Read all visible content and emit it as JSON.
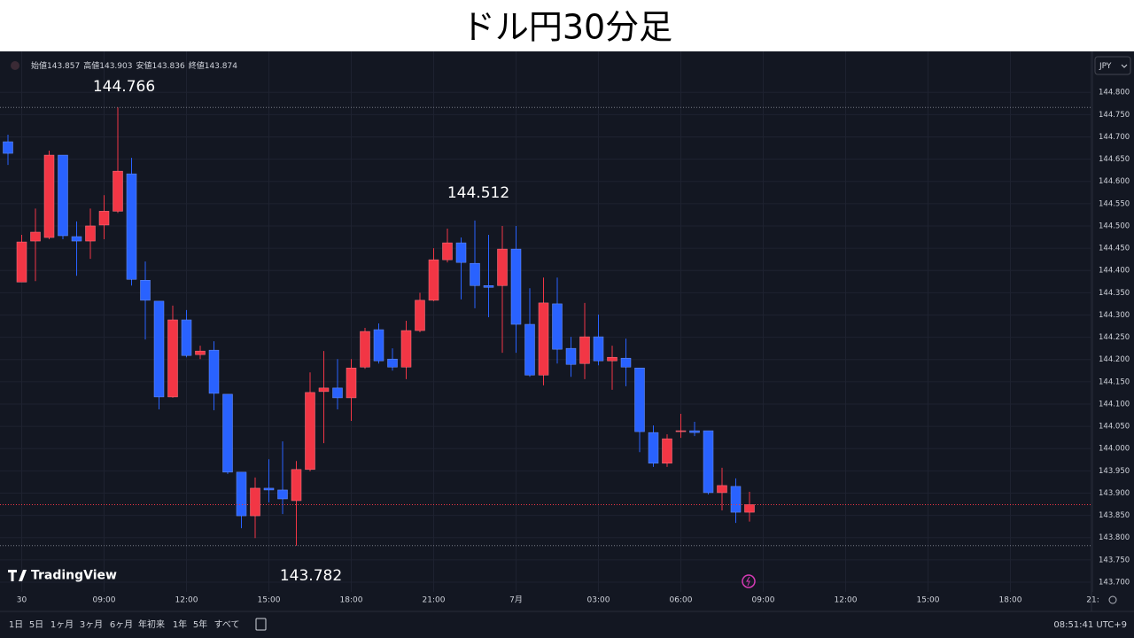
{
  "chart_data": {
    "type": "candlestick",
    "title": "ドル円30分足",
    "currency": "JPY",
    "brand": "TradingView",
    "ohlc_labels": [
      "始値",
      "高値",
      "安値",
      "終値"
    ],
    "up_color": "#f23645",
    "down_color": "#2962ff",
    "grid": true,
    "ylim": [
      143.684,
      144.884
    ],
    "yticks": [
      {
        "value": 144.8,
        "label": "144.800"
      },
      {
        "value": 144.75,
        "label": "144.750"
      },
      {
        "value": 144.7,
        "label": "144.700"
      },
      {
        "value": 144.65,
        "label": "144.650"
      },
      {
        "value": 144.6,
        "label": "144.600"
      },
      {
        "value": 144.55,
        "label": "144.550"
      },
      {
        "value": 144.5,
        "label": "144.500"
      },
      {
        "value": 144.45,
        "label": "144.450"
      },
      {
        "value": 144.4,
        "label": "144.400"
      },
      {
        "value": 144.35,
        "label": "144.350"
      },
      {
        "value": 144.3,
        "label": "144.300"
      },
      {
        "value": 144.25,
        "label": "144.250"
      },
      {
        "value": 144.2,
        "label": "144.200"
      },
      {
        "value": 144.15,
        "label": "144.150"
      },
      {
        "value": 144.1,
        "label": "144.100"
      },
      {
        "value": 144.05,
        "label": "144.050"
      },
      {
        "value": 144.0,
        "label": "144.000"
      },
      {
        "value": 143.95,
        "label": "143.950"
      },
      {
        "value": 143.9,
        "label": "143.900"
      },
      {
        "value": 143.85,
        "label": "143.850"
      },
      {
        "value": 143.8,
        "label": "143.800"
      },
      {
        "value": 143.75,
        "label": "143.750"
      },
      {
        "value": 143.7,
        "label": "143.700"
      }
    ],
    "annotations": [
      144.766,
      144.512,
      143.782
    ],
    "categories": [
      null,
      "30",
      null,
      null,
      null,
      null,
      null,
      "09:00",
      null,
      null,
      null,
      null,
      null,
      "12:00",
      null,
      null,
      null,
      null,
      null,
      "15:00",
      null,
      null,
      null,
      null,
      null,
      "18:00",
      null,
      null,
      null,
      null,
      null,
      "21:00",
      null,
      null,
      null,
      null,
      null,
      "7月",
      null,
      null,
      null,
      null,
      null,
      "03:00",
      null,
      null,
      null,
      null,
      null,
      "06:00",
      null,
      null,
      null,
      null,
      null,
      "09:00",
      null,
      null,
      null,
      null,
      null,
      "12:00",
      null,
      null,
      null,
      null,
      null,
      "15:00",
      null,
      null,
      null,
      null,
      null,
      "18:00",
      null,
      null,
      null,
      null,
      null,
      "21:"
    ],
    "open": [
      144.689,
      144.374,
      144.466,
      144.474,
      144.659,
      144.476,
      144.466,
      144.502,
      144.533,
      144.617,
      144.378,
      144.331,
      144.116,
      144.289,
      144.211,
      144.221,
      144.122,
      143.947,
      143.849,
      143.911,
      143.907,
      143.883,
      143.953,
      144.128,
      144.136,
      144.114,
      144.183,
      144.267,
      144.201,
      144.183,
      144.265,
      144.333,
      144.424,
      144.462,
      144.416,
      144.366,
      144.366,
      144.448,
      144.279,
      144.165,
      144.325,
      144.225,
      144.191,
      144.251,
      144.197,
      144.203,
      144.181,
      144.036,
      143.967,
      144.038,
      144.04,
      144.04,
      143.901,
      143.915,
      143.857,
      null,
      null,
      null,
      null,
      null,
      null,
      null,
      null,
      null,
      null,
      null,
      null,
      null,
      null,
      null,
      null,
      null,
      null,
      null,
      null,
      null,
      null,
      null,
      null,
      null
    ],
    "high": [
      144.705,
      144.48,
      144.539,
      144.669,
      144.659,
      144.51,
      144.539,
      144.569,
      144.766,
      144.653,
      144.42,
      144.331,
      144.321,
      144.311,
      144.231,
      144.241,
      144.122,
      143.947,
      143.935,
      143.976,
      144.016,
      143.972,
      144.171,
      144.219,
      144.201,
      144.201,
      144.271,
      144.281,
      144.225,
      144.287,
      144.35,
      144.45,
      144.494,
      144.474,
      144.512,
      144.48,
      144.5,
      144.5,
      144.36,
      144.384,
      144.384,
      144.251,
      144.327,
      144.301,
      144.231,
      144.247,
      144.181,
      144.052,
      144.032,
      144.078,
      144.06,
      144.04,
      143.957,
      143.933,
      143.903,
      null,
      null,
      null,
      null,
      null,
      null,
      null,
      null,
      null,
      null,
      null,
      null,
      null,
      null,
      null,
      null,
      null,
      null,
      null,
      null,
      null,
      null,
      null,
      null,
      null
    ],
    "low": [
      144.637,
      144.374,
      144.376,
      144.47,
      144.47,
      144.388,
      144.426,
      144.47,
      144.529,
      144.366,
      144.245,
      144.088,
      144.114,
      144.205,
      144.201,
      144.086,
      143.943,
      143.821,
      143.799,
      143.879,
      143.853,
      143.782,
      143.949,
      144.012,
      144.088,
      144.062,
      144.179,
      144.191,
      144.175,
      144.156,
      144.261,
      144.331,
      144.418,
      144.335,
      144.315,
      144.295,
      144.215,
      144.215,
      144.161,
      144.142,
      144.191,
      144.161,
      144.156,
      144.187,
      144.132,
      144.14,
      143.992,
      143.959,
      143.959,
      144.024,
      144.028,
      143.897,
      143.861,
      143.833,
      143.836,
      null,
      null,
      null,
      null,
      null,
      null,
      null,
      null,
      null,
      null,
      null,
      null,
      null,
      null,
      null,
      null,
      null,
      null,
      null,
      null,
      null,
      null,
      null,
      null,
      null
    ],
    "close": [
      144.663,
      144.464,
      144.486,
      144.659,
      144.478,
      144.466,
      144.5,
      144.533,
      144.623,
      144.38,
      144.333,
      144.116,
      144.289,
      144.209,
      144.219,
      144.124,
      143.947,
      143.849,
      143.911,
      143.907,
      143.887,
      143.953,
      144.126,
      144.136,
      144.114,
      144.181,
      144.263,
      144.197,
      144.183,
      144.265,
      144.333,
      144.424,
      144.462,
      144.418,
      144.366,
      144.362,
      144.448,
      144.279,
      144.165,
      144.327,
      144.223,
      144.189,
      144.251,
      144.197,
      144.205,
      144.183,
      144.038,
      143.967,
      144.022,
      144.04,
      144.036,
      143.901,
      143.917,
      143.857,
      143.874,
      null,
      null,
      null,
      null,
      null,
      null,
      null,
      null,
      null,
      null,
      null,
      null,
      null,
      null,
      null,
      null,
      null,
      null,
      null,
      null,
      null,
      null,
      null,
      null,
      null
    ]
  },
  "toolbar": {
    "ranges": [
      "1日",
      "5日",
      "1ヶ月",
      "3ヶ月",
      "6ヶ月",
      "年初来",
      "1年",
      "5年",
      "すべて"
    ],
    "clock": "08:51:41 UTC+9"
  }
}
